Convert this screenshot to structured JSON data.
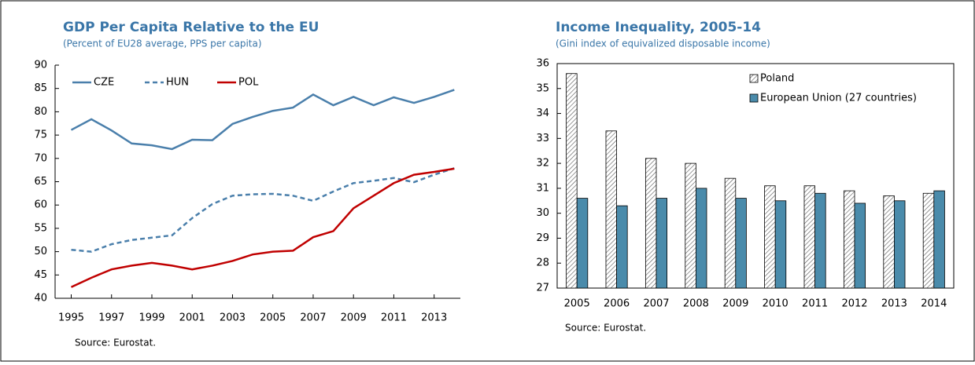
{
  "chart_data": [
    {
      "type": "line",
      "title": "GDP Per Capita Relative to the EU",
      "subtitle": "(Percent of EU28 average, PPS per capita)",
      "source": "Source: Eurostat.",
      "x": [
        1995,
        1996,
        1997,
        1998,
        1999,
        2000,
        2001,
        2002,
        2003,
        2004,
        2005,
        2006,
        2007,
        2008,
        2009,
        2010,
        2011,
        2012,
        2013,
        2014
      ],
      "series": [
        {
          "name": "CZE",
          "color": "#4a7fab",
          "style": "solid",
          "values": [
            76.1,
            78.4,
            76,
            73.2,
            72.8,
            72,
            74,
            73.9,
            77.4,
            78.9,
            80.2,
            80.9,
            83.7,
            81.4,
            83.2,
            81.4,
            83.1,
            81.9,
            83.2,
            84.7
          ]
        },
        {
          "name": "HUN",
          "color": "#4a7fab",
          "style": "dashed",
          "values": [
            50.4,
            50,
            51.6,
            52.5,
            53,
            53.5,
            57.2,
            60.2,
            62,
            62.3,
            62.4,
            62,
            60.9,
            62.9,
            64.7,
            65.2,
            65.8,
            64.9,
            66.5,
            67.9
          ]
        },
        {
          "name": "POL",
          "color": "#c00000",
          "style": "solid",
          "values": [
            42.4,
            44.4,
            46.2,
            47,
            47.6,
            47,
            46.2,
            47,
            48,
            49.4,
            50,
            50.2,
            53.1,
            54.4,
            59.3,
            62,
            64.7,
            66.5,
            67.1,
            67.8
          ]
        }
      ],
      "xlim": [
        1994.2,
        2014.3
      ],
      "xticks": [
        1995,
        1997,
        1999,
        2001,
        2003,
        2005,
        2007,
        2009,
        2011,
        2013
      ],
      "ylim": [
        40,
        90
      ],
      "yticks": [
        40,
        45,
        50,
        55,
        60,
        65,
        70,
        75,
        80,
        85,
        90
      ],
      "legend": "top-left"
    },
    {
      "type": "bar",
      "title": "Income Inequality, 2005-14",
      "subtitle": "(Gini index of equivalized disposable income)",
      "source": "Source: Eurostat.",
      "categories": [
        "2005",
        "2006",
        "2007",
        "2008",
        "2009",
        "2010",
        "2011",
        "2012",
        "2013",
        "2014"
      ],
      "series": [
        {
          "name": "Poland",
          "color": "#ffffff",
          "pattern": "hatch",
          "values": [
            35.6,
            33.3,
            32.2,
            32.0,
            31.4,
            31.1,
            31.1,
            30.9,
            30.7,
            30.8
          ]
        },
        {
          "name": "European Union (27 countries)",
          "color": "#4a8bab",
          "values": [
            30.6,
            30.3,
            30.6,
            31.0,
            30.6,
            30.5,
            30.8,
            30.4,
            30.5,
            30.9
          ]
        }
      ],
      "ylim": [
        27,
        36
      ],
      "yticks": [
        27,
        28,
        29,
        30,
        31,
        32,
        33,
        34,
        35,
        36
      ],
      "legend": "top-right"
    }
  ]
}
